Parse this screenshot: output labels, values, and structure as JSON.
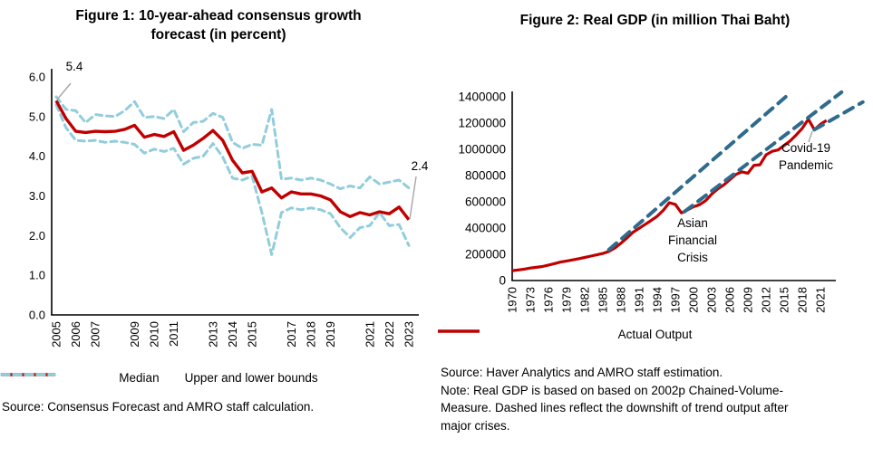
{
  "figure1": {
    "title_line1": "Figure 1: 10-year-ahead consensus growth",
    "title_line2": "forecast (in percent)",
    "start_label": "5.4",
    "end_label": "2.4",
    "legend": [
      {
        "label": "Median"
      },
      {
        "label": "Upper and lower bounds"
      }
    ],
    "source": "Source: Consensus Forecast and AMRO staff calculation."
  },
  "figure2": {
    "title": "Figure 2: Real GDP (in million Thai Baht)",
    "annotation_asian_lines": [
      "Asian",
      "Financial",
      "Crisis"
    ],
    "annotation_covid_lines": [
      "Covid-19",
      "Pandemic"
    ],
    "legend": [
      {
        "label": "Actual Output"
      }
    ],
    "source_lines": [
      "Source: Haver Analytics and AMRO staff estimation.",
      "Note: Real GDP is based on based on 2002p Chained-Volume-",
      "Measure. Dashed lines reflect the downshift of trend output after",
      "major crises."
    ]
  },
  "colors": {
    "median_red": "#C00000",
    "bounds_light_blue": "#92CDDC",
    "trend_steel_blue": "#2E6B8C",
    "leader_gray": "#A6A6A6",
    "axis_black": "#000000"
  },
  "chart_data": [
    {
      "type": "line",
      "title": "Figure 1: 10-year-ahead consensus growth forecast (in percent)",
      "x_start": 2005,
      "x_step": 0.5,
      "ylim": [
        0,
        6
      ],
      "y_ticks": [
        "0.0",
        "1.0",
        "2.0",
        "3.0",
        "4.0",
        "5.0",
        "6.0"
      ],
      "x_tick_years": [
        2005,
        2006,
        2007,
        2009,
        2010,
        2011,
        2013,
        2014,
        2015,
        2017,
        2018,
        2019,
        2021,
        2022,
        2023
      ],
      "grid": false,
      "legend_position": "bottom",
      "series": [
        {
          "name": "Median",
          "color": "#C00000",
          "style": "solid",
          "values": [
            5.4,
            4.95,
            4.63,
            4.6,
            4.63,
            4.62,
            4.63,
            4.68,
            4.78,
            4.48,
            4.55,
            4.5,
            4.62,
            4.15,
            4.28,
            4.45,
            4.65,
            4.4,
            3.9,
            3.58,
            3.62,
            3.1,
            3.2,
            2.95,
            3.1,
            3.05,
            3.05,
            3.0,
            2.9,
            2.6,
            2.48,
            2.58,
            2.52,
            2.6,
            2.55,
            2.72,
            2.4
          ]
        },
        {
          "name": "Upper bound",
          "color": "#92CDDC",
          "style": "dashed",
          "values": [
            5.5,
            5.18,
            5.15,
            4.85,
            5.05,
            5.02,
            5.0,
            5.15,
            5.38,
            4.98,
            5.0,
            4.95,
            5.18,
            4.62,
            4.85,
            4.88,
            5.08,
            4.98,
            4.35,
            4.2,
            4.3,
            4.28,
            5.18,
            3.42,
            3.45,
            3.4,
            3.45,
            3.4,
            3.3,
            3.18,
            3.25,
            3.2,
            3.48,
            3.3,
            3.35,
            3.4,
            3.2
          ]
        },
        {
          "name": "Lower bound",
          "color": "#92CDDC",
          "style": "dashed",
          "values": [
            5.3,
            4.72,
            4.4,
            4.38,
            4.4,
            4.35,
            4.38,
            4.35,
            4.3,
            4.08,
            4.18,
            4.12,
            4.2,
            3.8,
            3.95,
            4.0,
            4.32,
            3.98,
            3.45,
            3.4,
            3.5,
            2.58,
            1.52,
            2.58,
            2.7,
            2.65,
            2.7,
            2.65,
            2.55,
            2.2,
            1.95,
            2.2,
            2.25,
            2.58,
            2.25,
            2.28,
            1.75
          ]
        }
      ],
      "annotations": [
        {
          "text": "5.4",
          "x": 2005,
          "y": 5.4
        },
        {
          "text": "2.4",
          "x": 2023,
          "y": 2.4
        }
      ]
    },
    {
      "type": "line",
      "title": "Figure 2: Real GDP (in million Thai Baht)",
      "x_start": 1970,
      "x_step": 1,
      "ylim": [
        0,
        1400000
      ],
      "y_ticks": [
        "0",
        "200000",
        "400000",
        "600000",
        "800000",
        "1000000",
        "1200000",
        "1400000"
      ],
      "x_tick_years": [
        1970,
        1973,
        1976,
        1979,
        1982,
        1985,
        1988,
        1991,
        1994,
        1997,
        2000,
        2003,
        2006,
        2009,
        2012,
        2015,
        2018,
        2021
      ],
      "grid": false,
      "legend_position": "bottom",
      "series": [
        {
          "name": "Actual Output",
          "color": "#C00000",
          "style": "solid",
          "values": [
            75000,
            81000,
            87000,
            95000,
            101000,
            107000,
            118000,
            129000,
            141000,
            149000,
            157000,
            166000,
            176000,
            186000,
            196000,
            206000,
            222000,
            248000,
            285000,
            325000,
            368000,
            398000,
            428000,
            458000,
            490000,
            535000,
            593000,
            580000,
            515000,
            538000,
            562000,
            578000,
            608000,
            658000,
            698000,
            728000,
            768000,
            808000,
            828000,
            818000,
            878000,
            882000,
            958000,
            985000,
            995000,
            1030000,
            1065000,
            1110000,
            1160000,
            1230000,
            1150000,
            1190000,
            1220000
          ]
        }
      ],
      "trend_lines": [
        {
          "name": "trend_pre_1997",
          "color": "#2E6B8C",
          "style": "dashed",
          "points": [
            [
              1986,
              235000
            ],
            [
              2016,
              1430000
            ]
          ]
        },
        {
          "name": "trend_post_1997",
          "color": "#2E6B8C",
          "style": "dashed",
          "points": [
            [
              1998.5,
              525000
            ],
            [
              2024.5,
              1435000
            ]
          ]
        },
        {
          "name": "trend_post_2020",
          "color": "#2E6B8C",
          "style": "dashed",
          "points": [
            [
              2020,
              1150000
            ],
            [
              2028,
              1360000
            ]
          ]
        }
      ],
      "annotations": [
        {
          "text": "Asian Financial Crisis",
          "x": 2000,
          "y": 380000
        },
        {
          "text": "Covid-19 Pandemic",
          "x": 2018,
          "y": 930000
        }
      ]
    }
  ]
}
